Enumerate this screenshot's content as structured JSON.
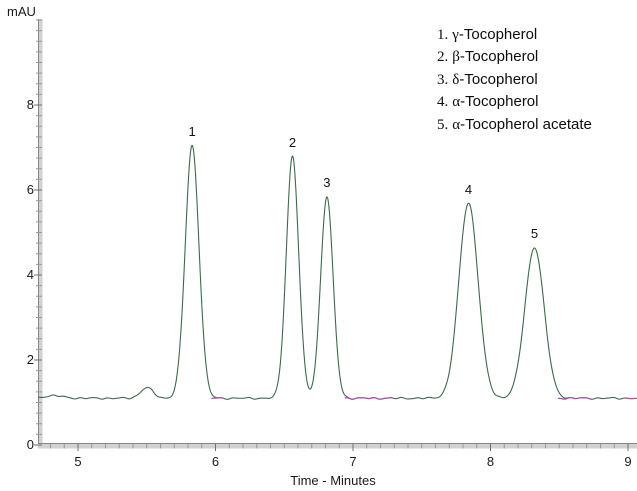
{
  "labels": {
    "y_axis": "mAU",
    "x_axis": "Time - Minutes"
  },
  "legend": {
    "items": [
      {
        "prefix": "1.",
        "greek": "γ",
        "rest": "-Tocopherol",
        "full": "1. γ-Tocopherol"
      },
      {
        "prefix": "2.",
        "greek": "β",
        "rest": "-Tocopherol",
        "full": "2. β-Tocopherol"
      },
      {
        "prefix": "3.",
        "greek": "δ",
        "rest": "-Tocopherol",
        "full": "3. δ-Tocopherol"
      },
      {
        "prefix": "4.",
        "greek": "α",
        "rest": "-Tocopherol",
        "full": "4. α-Tocopherol"
      },
      {
        "prefix": "5.",
        "greek": "α",
        "rest": "-Tocopherol acetate",
        "full": "5. α-Tocopherol acetate"
      }
    ]
  },
  "chart_data": {
    "type": "line",
    "title": "",
    "xlabel": "Time - Minutes",
    "ylabel": "mAU",
    "xlim": [
      4.71,
      9.07
    ],
    "ylim": [
      0,
      10
    ],
    "x_major_ticks": [
      5,
      6,
      7,
      8,
      9
    ],
    "x_minor_tick_interval_min": 0.1,
    "y_labeled_ticks": [
      0,
      2,
      4,
      6,
      8
    ],
    "y_minor_tick_interval_mAU": 0.25,
    "grid": false,
    "legend_position": "top-right",
    "baseline_mAU": 1.1,
    "trace_color": "#3f6a4a",
    "baseline_mark_color": "#a84fa8",
    "axis_color": "#d2d2d2",
    "peaks": [
      {
        "label": "1",
        "compound": "γ-Tocopherol",
        "retention_time_min": 5.83,
        "apex_mAU": 7.05,
        "sigma_min": 0.05
      },
      {
        "label": "2",
        "compound": "β-Tocopherol",
        "retention_time_min": 6.56,
        "apex_mAU": 6.8,
        "sigma_min": 0.045
      },
      {
        "label": "3",
        "compound": "δ-Tocopherol",
        "retention_time_min": 6.81,
        "apex_mAU": 5.85,
        "sigma_min": 0.045
      },
      {
        "label": "4",
        "compound": "α-Tocopherol",
        "retention_time_min": 7.84,
        "apex_mAU": 5.7,
        "sigma_min": 0.07
      },
      {
        "label": "5",
        "compound": "α-Tocopherol acetate",
        "retention_time_min": 8.32,
        "apex_mAU": 4.65,
        "sigma_min": 0.07
      }
    ],
    "minor_features": [
      {
        "retention_time_min": 4.82,
        "apex_mAU": 1.16,
        "sigma_min": 0.07
      },
      {
        "retention_time_min": 5.5,
        "apex_mAU": 1.35,
        "sigma_min": 0.045
      }
    ],
    "baseline_marks_min": [
      [
        5.97,
        6.06
      ],
      [
        6.94,
        7.29
      ],
      [
        8.49,
        8.74
      ],
      [
        8.99,
        9.05
      ]
    ]
  }
}
